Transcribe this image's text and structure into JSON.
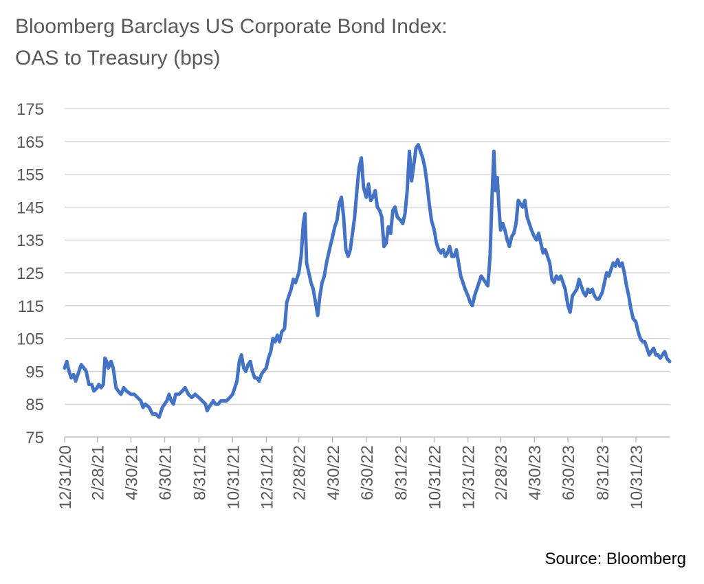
{
  "title_line1": "Bloomberg Barclays US Corporate Bond Index:",
  "title_line2": "OAS to Treasury (bps)",
  "source": "Source: Bloomberg",
  "colors": {
    "line": "#4472C4",
    "grid": "#D9D9D9",
    "axis": "#BFBFBF",
    "text": "#595959"
  },
  "chart_data": {
    "type": "line",
    "title": "Bloomberg Barclays US Corporate Bond Index: OAS to Treasury (bps)",
    "xlabel": "",
    "ylabel": "",
    "ylim": [
      75,
      175
    ],
    "yticks": [
      175,
      165,
      155,
      145,
      135,
      125,
      115,
      105,
      95,
      85,
      75
    ],
    "xlim": [
      "2020-12-31",
      "2023-12-31"
    ],
    "xtick_labels": [
      "12/31/20",
      "2/28/21",
      "4/30/21",
      "6/30/21",
      "8/31/21",
      "10/31/21",
      "12/31/21",
      "2/28/22",
      "4/30/22",
      "6/30/22",
      "8/31/22",
      "10/31/22",
      "12/31/22",
      "2/28/23",
      "4/30/23",
      "6/30/23",
      "8/31/23",
      "10/31/23"
    ],
    "xtick_dates": [
      "2020-12-31",
      "2021-02-28",
      "2021-04-30",
      "2021-06-30",
      "2021-08-31",
      "2021-10-31",
      "2021-12-31",
      "2022-02-28",
      "2022-04-30",
      "2022-06-30",
      "2022-08-31",
      "2022-10-31",
      "2022-12-31",
      "2023-02-28",
      "2023-04-30",
      "2023-06-30",
      "2023-08-31",
      "2023-10-31"
    ],
    "grid": true,
    "series": [
      {
        "points": [
          [
            "2020-12-31",
            96
          ],
          [
            "2021-01-04",
            98
          ],
          [
            "2021-01-08",
            95
          ],
          [
            "2021-01-12",
            93
          ],
          [
            "2021-01-16",
            94
          ],
          [
            "2021-01-20",
            92
          ],
          [
            "2021-01-26",
            95
          ],
          [
            "2021-01-30",
            97
          ],
          [
            "2021-02-04",
            96
          ],
          [
            "2021-02-08",
            95
          ],
          [
            "2021-02-13",
            91
          ],
          [
            "2021-02-18",
            91
          ],
          [
            "2021-02-22",
            89
          ],
          [
            "2021-02-28",
            90
          ],
          [
            "2021-03-03",
            91
          ],
          [
            "2021-03-07",
            90
          ],
          [
            "2021-03-11",
            91
          ],
          [
            "2021-03-14",
            99
          ],
          [
            "2021-03-17",
            98
          ],
          [
            "2021-03-20",
            96
          ],
          [
            "2021-03-25",
            98
          ],
          [
            "2021-03-29",
            96
          ],
          [
            "2021-04-03",
            90
          ],
          [
            "2021-04-07",
            89
          ],
          [
            "2021-04-12",
            88
          ],
          [
            "2021-04-17",
            90
          ],
          [
            "2021-04-22",
            89
          ],
          [
            "2021-04-30",
            88
          ],
          [
            "2021-05-06",
            88
          ],
          [
            "2021-05-12",
            87
          ],
          [
            "2021-05-18",
            86
          ],
          [
            "2021-05-22",
            84
          ],
          [
            "2021-05-26",
            85
          ],
          [
            "2021-06-02",
            84
          ],
          [
            "2021-06-08",
            82
          ],
          [
            "2021-06-14",
            82
          ],
          [
            "2021-06-20",
            81
          ],
          [
            "2021-06-26",
            84
          ],
          [
            "2021-06-30",
            85
          ],
          [
            "2021-07-04",
            86
          ],
          [
            "2021-07-08",
            88
          ],
          [
            "2021-07-12",
            86
          ],
          [
            "2021-07-16",
            85
          ],
          [
            "2021-07-20",
            88
          ],
          [
            "2021-07-26",
            88
          ],
          [
            "2021-08-01",
            89
          ],
          [
            "2021-08-06",
            90
          ],
          [
            "2021-08-12",
            88
          ],
          [
            "2021-08-18",
            87
          ],
          [
            "2021-08-24",
            88
          ],
          [
            "2021-08-31",
            87
          ],
          [
            "2021-09-06",
            86
          ],
          [
            "2021-09-12",
            85
          ],
          [
            "2021-09-15",
            83
          ],
          [
            "2021-09-18",
            84
          ],
          [
            "2021-09-22",
            85
          ],
          [
            "2021-09-26",
            86
          ],
          [
            "2021-09-30",
            85
          ],
          [
            "2021-10-05",
            85
          ],
          [
            "2021-10-10",
            86
          ],
          [
            "2021-10-15",
            86
          ],
          [
            "2021-10-20",
            86
          ],
          [
            "2021-10-26",
            87
          ],
          [
            "2021-10-31",
            88
          ],
          [
            "2021-11-04",
            90
          ],
          [
            "2021-11-08",
            92
          ],
          [
            "2021-11-12",
            98
          ],
          [
            "2021-11-16",
            100
          ],
          [
            "2021-11-20",
            96
          ],
          [
            "2021-11-24",
            95
          ],
          [
            "2021-11-28",
            97
          ],
          [
            "2021-12-02",
            98
          ],
          [
            "2021-12-06",
            95
          ],
          [
            "2021-12-10",
            93
          ],
          [
            "2021-12-14",
            93
          ],
          [
            "2021-12-18",
            92
          ],
          [
            "2021-12-22",
            94
          ],
          [
            "2021-12-26",
            95
          ],
          [
            "2021-12-31",
            96
          ],
          [
            "2022-01-04",
            99
          ],
          [
            "2022-01-08",
            101
          ],
          [
            "2022-01-12",
            105
          ],
          [
            "2022-01-16",
            104
          ],
          [
            "2022-01-20",
            106
          ],
          [
            "2022-01-24",
            104
          ],
          [
            "2022-01-28",
            107
          ],
          [
            "2022-02-02",
            108
          ],
          [
            "2022-02-06",
            116
          ],
          [
            "2022-02-10",
            118
          ],
          [
            "2022-02-14",
            120
          ],
          [
            "2022-02-18",
            123
          ],
          [
            "2022-02-22",
            122
          ],
          [
            "2022-02-28",
            125
          ],
          [
            "2022-03-04",
            130
          ],
          [
            "2022-03-08",
            140
          ],
          [
            "2022-03-11",
            143
          ],
          [
            "2022-03-14",
            128
          ],
          [
            "2022-03-18",
            125
          ],
          [
            "2022-03-22",
            122
          ],
          [
            "2022-03-26",
            120
          ],
          [
            "2022-03-30",
            116
          ],
          [
            "2022-04-03",
            112
          ],
          [
            "2022-04-07",
            118
          ],
          [
            "2022-04-11",
            122
          ],
          [
            "2022-04-15",
            124
          ],
          [
            "2022-04-19",
            128
          ],
          [
            "2022-04-23",
            131
          ],
          [
            "2022-04-27",
            134
          ],
          [
            "2022-04-30",
            136
          ],
          [
            "2022-05-04",
            139
          ],
          [
            "2022-05-08",
            141
          ],
          [
            "2022-05-12",
            146
          ],
          [
            "2022-05-16",
            148
          ],
          [
            "2022-05-20",
            142
          ],
          [
            "2022-05-24",
            132
          ],
          [
            "2022-05-28",
            130
          ],
          [
            "2022-06-01",
            132
          ],
          [
            "2022-06-05",
            137
          ],
          [
            "2022-06-09",
            142
          ],
          [
            "2022-06-13",
            150
          ],
          [
            "2022-06-17",
            157
          ],
          [
            "2022-06-21",
            160
          ],
          [
            "2022-06-25",
            151
          ],
          [
            "2022-06-30",
            148
          ],
          [
            "2022-07-04",
            152
          ],
          [
            "2022-07-08",
            147
          ],
          [
            "2022-07-12",
            148
          ],
          [
            "2022-07-16",
            150
          ],
          [
            "2022-07-20",
            145
          ],
          [
            "2022-07-24",
            144
          ],
          [
            "2022-07-28",
            142
          ],
          [
            "2022-08-01",
            133
          ],
          [
            "2022-08-05",
            134
          ],
          [
            "2022-08-09",
            139
          ],
          [
            "2022-08-13",
            137
          ],
          [
            "2022-08-17",
            144
          ],
          [
            "2022-08-21",
            145
          ],
          [
            "2022-08-25",
            142
          ],
          [
            "2022-08-31",
            141
          ],
          [
            "2022-09-04",
            140
          ],
          [
            "2022-09-08",
            143
          ],
          [
            "2022-09-12",
            150
          ],
          [
            "2022-09-16",
            162
          ],
          [
            "2022-09-20",
            153
          ],
          [
            "2022-09-24",
            158
          ],
          [
            "2022-09-28",
            163
          ],
          [
            "2022-10-02",
            164
          ],
          [
            "2022-10-06",
            162
          ],
          [
            "2022-10-10",
            160
          ],
          [
            "2022-10-14",
            157
          ],
          [
            "2022-10-18",
            152
          ],
          [
            "2022-10-22",
            146
          ],
          [
            "2022-10-26",
            141
          ],
          [
            "2022-10-31",
            138
          ],
          [
            "2022-11-04",
            134
          ],
          [
            "2022-11-08",
            132
          ],
          [
            "2022-11-12",
            131
          ],
          [
            "2022-11-16",
            132
          ],
          [
            "2022-11-20",
            130
          ],
          [
            "2022-11-24",
            131
          ],
          [
            "2022-11-28",
            133
          ],
          [
            "2022-12-02",
            130
          ],
          [
            "2022-12-06",
            130
          ],
          [
            "2022-12-10",
            132
          ],
          [
            "2022-12-14",
            128
          ],
          [
            "2022-12-18",
            124
          ],
          [
            "2022-12-22",
            122
          ],
          [
            "2022-12-26",
            120
          ],
          [
            "2022-12-31",
            118
          ],
          [
            "2023-01-04",
            116
          ],
          [
            "2023-01-08",
            115
          ],
          [
            "2023-01-12",
            118
          ],
          [
            "2023-01-16",
            120
          ],
          [
            "2023-01-20",
            122
          ],
          [
            "2023-01-24",
            124
          ],
          [
            "2023-01-28",
            123
          ],
          [
            "2023-02-01",
            122
          ],
          [
            "2023-02-05",
            121
          ],
          [
            "2023-02-09",
            130
          ],
          [
            "2023-02-13",
            150
          ],
          [
            "2023-02-16",
            162
          ],
          [
            "2023-02-19",
            150
          ],
          [
            "2023-02-22",
            154
          ],
          [
            "2023-02-25",
            145
          ],
          [
            "2023-02-28",
            138
          ],
          [
            "2023-03-04",
            140
          ],
          [
            "2023-03-08",
            138
          ],
          [
            "2023-03-12",
            135
          ],
          [
            "2023-03-16",
            133
          ],
          [
            "2023-03-20",
            136
          ],
          [
            "2023-03-24",
            137
          ],
          [
            "2023-03-28",
            140
          ],
          [
            "2023-04-01",
            147
          ],
          [
            "2023-04-05",
            146
          ],
          [
            "2023-04-09",
            145
          ],
          [
            "2023-04-13",
            147
          ],
          [
            "2023-04-17",
            142
          ],
          [
            "2023-04-21",
            140
          ],
          [
            "2023-04-25",
            138
          ],
          [
            "2023-04-30",
            136
          ],
          [
            "2023-05-04",
            135
          ],
          [
            "2023-05-08",
            137
          ],
          [
            "2023-05-12",
            134
          ],
          [
            "2023-05-16",
            131
          ],
          [
            "2023-05-20",
            132
          ],
          [
            "2023-05-24",
            130
          ],
          [
            "2023-05-28",
            128
          ],
          [
            "2023-06-01",
            123
          ],
          [
            "2023-06-05",
            122
          ],
          [
            "2023-06-09",
            124
          ],
          [
            "2023-06-13",
            123
          ],
          [
            "2023-06-17",
            124
          ],
          [
            "2023-06-21",
            122
          ],
          [
            "2023-06-25",
            120
          ],
          [
            "2023-06-30",
            115
          ],
          [
            "2023-07-04",
            113
          ],
          [
            "2023-07-08",
            118
          ],
          [
            "2023-07-12",
            119
          ],
          [
            "2023-07-16",
            120
          ],
          [
            "2023-07-20",
            123
          ],
          [
            "2023-07-24",
            121
          ],
          [
            "2023-07-28",
            119
          ],
          [
            "2023-08-01",
            118
          ],
          [
            "2023-08-05",
            120
          ],
          [
            "2023-08-09",
            119
          ],
          [
            "2023-08-13",
            120
          ],
          [
            "2023-08-17",
            118
          ],
          [
            "2023-08-21",
            117
          ],
          [
            "2023-08-25",
            117
          ],
          [
            "2023-08-31",
            119
          ],
          [
            "2023-09-04",
            122
          ],
          [
            "2023-09-08",
            125
          ],
          [
            "2023-09-12",
            124
          ],
          [
            "2023-09-16",
            126
          ],
          [
            "2023-09-20",
            128
          ],
          [
            "2023-09-24",
            127
          ],
          [
            "2023-09-28",
            129
          ],
          [
            "2023-10-02",
            127
          ],
          [
            "2023-10-06",
            128
          ],
          [
            "2023-10-10",
            125
          ],
          [
            "2023-10-14",
            121
          ],
          [
            "2023-10-18",
            118
          ],
          [
            "2023-10-22",
            114
          ],
          [
            "2023-10-26",
            111
          ],
          [
            "2023-10-31",
            110
          ],
          [
            "2023-11-04",
            107
          ],
          [
            "2023-11-08",
            105
          ],
          [
            "2023-11-12",
            104
          ],
          [
            "2023-11-16",
            104
          ],
          [
            "2023-11-20",
            102
          ],
          [
            "2023-11-24",
            100
          ],
          [
            "2023-11-28",
            101
          ],
          [
            "2023-12-02",
            102
          ],
          [
            "2023-12-06",
            100
          ],
          [
            "2023-12-10",
            100
          ],
          [
            "2023-12-14",
            99
          ],
          [
            "2023-12-18",
            100
          ],
          [
            "2023-12-22",
            101
          ],
          [
            "2023-12-26",
            99
          ],
          [
            "2023-12-31",
            98
          ]
        ]
      }
    ]
  }
}
